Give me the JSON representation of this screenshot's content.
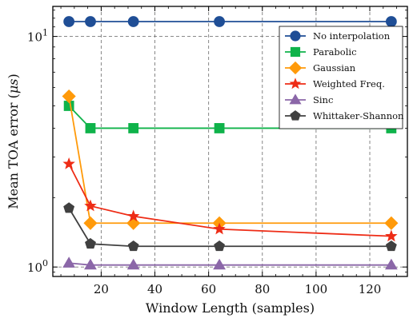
{
  "chart_data": {
    "type": "line",
    "title": "",
    "xlabel": "Window Length (samples)",
    "ylabel": "Mean TOA error (μs)",
    "ylabel_parts": {
      "main": "Mean TOA error (",
      "mu": "μ",
      "unit": "s",
      "close": ")"
    },
    "x_scale": "linear",
    "y_scale": "log",
    "xlim": [
      2,
      134
    ],
    "ylim": [
      0.91,
      13.5
    ],
    "x_ticks": [
      20,
      40,
      60,
      80,
      100,
      120
    ],
    "x_tick_labels": [
      "20",
      "40",
      "60",
      "80",
      "100",
      "120"
    ],
    "y_ticks": [
      1,
      10
    ],
    "y_tick_labels": [
      "10⁰",
      "10¹"
    ],
    "y_tick_label_parts": [
      {
        "base": "10",
        "exp": "0"
      },
      {
        "base": "10",
        "exp": "1"
      }
    ],
    "grid": true,
    "legend_position": "top-right",
    "x": [
      8,
      16,
      32,
      64,
      128
    ],
    "series": [
      {
        "name": "No interpolation",
        "color": "#1f4e96",
        "marker": "circle",
        "values": [
          11.6,
          11.6,
          11.6,
          11.6,
          11.6
        ]
      },
      {
        "name": "Parabolic",
        "color": "#0fb34a",
        "marker": "square",
        "values": [
          5.0,
          4.0,
          4.0,
          4.0,
          4.0
        ]
      },
      {
        "name": "Gaussian",
        "color": "#ff9a0a",
        "marker": "diamond",
        "values": [
          5.5,
          1.55,
          1.55,
          1.55,
          1.55
        ]
      },
      {
        "name": "Weighted Freq.",
        "color": "#ee2c16",
        "marker": "star",
        "values": [
          2.8,
          1.84,
          1.66,
          1.46,
          1.36
        ]
      },
      {
        "name": "Sinc",
        "color": "#8b67a8",
        "marker": "triangle",
        "values": [
          1.04,
          1.02,
          1.02,
          1.02,
          1.02
        ]
      },
      {
        "name": "Whittaker-Shannon",
        "color": "#404040",
        "marker": "pentagon",
        "values": [
          1.8,
          1.26,
          1.23,
          1.23,
          1.23
        ]
      }
    ]
  }
}
